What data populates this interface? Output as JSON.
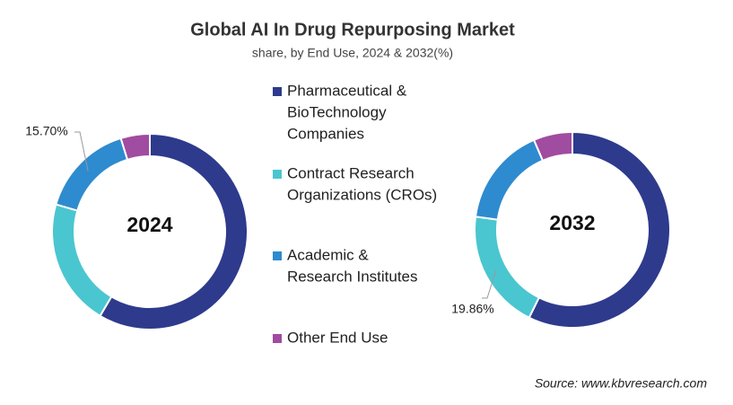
{
  "title": "Global AI In Drug Repurposing Market",
  "subtitle": "share, by End Use, 2024 & 2032(%)",
  "source": "Source: www.kbvresearch.com",
  "legend": {
    "categories": [
      [
        "Pharmaceutical &",
        "BioTechnology",
        "Companies"
      ],
      [
        "Contract Research",
        "Organizations (CROs)"
      ],
      [
        "Academic &",
        "Research Institutes"
      ],
      [
        "Other End Use"
      ]
    ],
    "colors": [
      "#2e3a8c",
      "#4ac6d0",
      "#2e8bcf",
      "#a04ca0"
    ]
  },
  "chart_data": [
    {
      "type": "donut",
      "label": "2024",
      "values": [
        58.5,
        21.0,
        15.7,
        4.8
      ],
      "value_labels": [
        null,
        null,
        "15.70%",
        null
      ]
    },
    {
      "type": "donut",
      "label": "2032",
      "values": [
        57.3,
        19.86,
        16.4,
        6.44
      ],
      "value_labels": [
        null,
        "19.86%",
        null,
        null
      ]
    }
  ]
}
